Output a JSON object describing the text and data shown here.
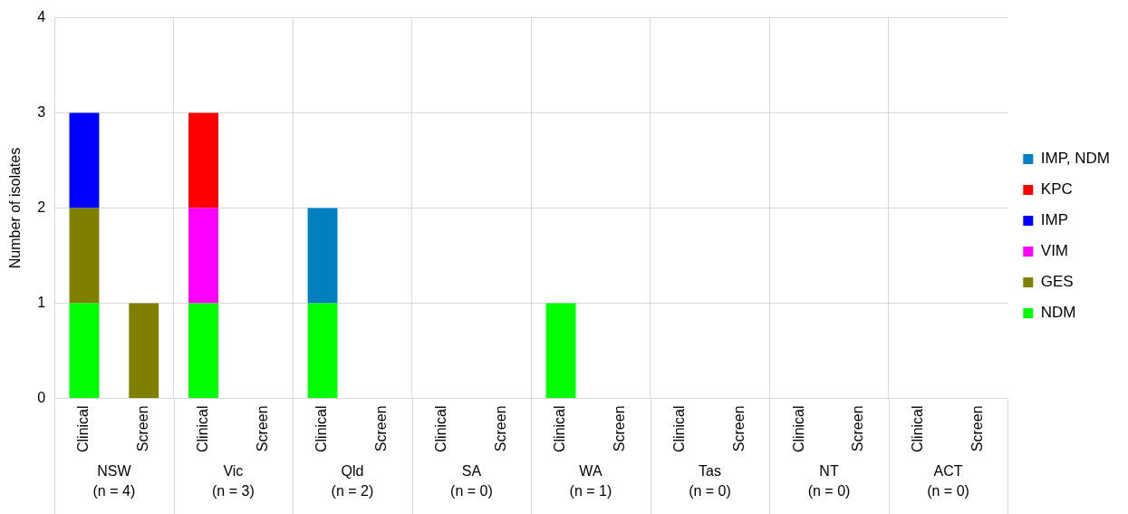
{
  "chart_data": {
    "type": "bar",
    "stacked": true,
    "ylabel": "Number of isolates",
    "categories": [
      "Clinical",
      "Screen",
      "Clinical",
      "Screen",
      "Clinical",
      "Screen",
      "Clinical",
      "Screen",
      "Clinical",
      "Screen",
      "Clinical",
      "Screen",
      "Clinical",
      "Screen",
      "Clinical",
      "Screen"
    ],
    "annotations": [
      "NSW\n(n = 4)",
      "Vic\n(n = 3)",
      "Qld\n(n = 2)",
      "SA\n(n = 0)",
      "WA\n(n = 1)",
      "Tas\n(n = 0)",
      "NT\n(n = 0)",
      "ACT\n(n = 0)"
    ],
    "series": [
      {
        "name": "NDM",
        "color": "#00ff00",
        "values": [
          1,
          0,
          1,
          0,
          1,
          0,
          0,
          0,
          1,
          0,
          0,
          0,
          0,
          0,
          0,
          0
        ]
      },
      {
        "name": "GES",
        "color": "#808000",
        "values": [
          1,
          1,
          0,
          0,
          0,
          0,
          0,
          0,
          0,
          0,
          0,
          0,
          0,
          0,
          0,
          0
        ]
      },
      {
        "name": "VIM",
        "color": "#ff00ff",
        "values": [
          0,
          0,
          1,
          0,
          0,
          0,
          0,
          0,
          0,
          0,
          0,
          0,
          0,
          0,
          0,
          0
        ]
      },
      {
        "name": "IMP",
        "color": "#0000ff",
        "values": [
          1,
          0,
          0,
          0,
          0,
          0,
          0,
          0,
          0,
          0,
          0,
          0,
          0,
          0,
          0,
          0
        ]
      },
      {
        "name": "KPC",
        "color": "#ff0000",
        "values": [
          0,
          0,
          1,
          0,
          0,
          0,
          0,
          0,
          0,
          0,
          0,
          0,
          0,
          0,
          0,
          0
        ]
      },
      {
        "name": "IMP, NDM",
        "color": "#0080c0",
        "values": [
          0,
          0,
          0,
          0,
          1,
          0,
          0,
          0,
          0,
          0,
          0,
          0,
          0,
          0,
          0,
          0
        ]
      }
    ],
    "ylim": [
      0,
      4
    ],
    "yticks": [
      0,
      1,
      2,
      3,
      4
    ],
    "grid": true,
    "legend": "right"
  }
}
